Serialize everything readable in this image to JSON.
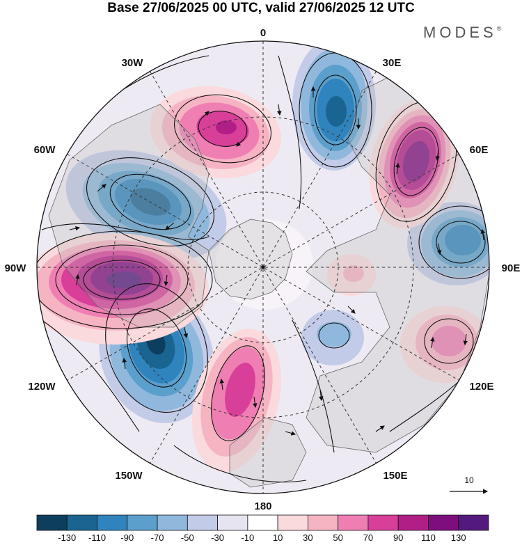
{
  "title": "Base 27/06/2025 00 UTC, valid 27/06/2025 12 UTC",
  "brand": {
    "name": "MODES",
    "mark": "®"
  },
  "meridian_labels": [
    {
      "text": "0",
      "lon": 0
    },
    {
      "text": "30E",
      "lon": 30
    },
    {
      "text": "60E",
      "lon": 60
    },
    {
      "text": "90E",
      "lon": 90
    },
    {
      "text": "120E",
      "lon": 120
    },
    {
      "text": "150E",
      "lon": 150
    },
    {
      "text": "180",
      "lon": 180
    },
    {
      "text": "150W",
      "lon": -150
    },
    {
      "text": "120W",
      "lon": -120
    },
    {
      "text": "90W",
      "lon": -90
    },
    {
      "text": "60W",
      "lon": -60
    },
    {
      "text": "30W",
      "lon": -30
    }
  ],
  "vector_reference": {
    "label": "10"
  },
  "colorbar": {
    "colors": [
      "#0d3e5d",
      "#1a6492",
      "#2f84bd",
      "#5b9fcd",
      "#8fb8dc",
      "#c2cbe7",
      "#e6e4f1",
      "#ffffff",
      "#fadadc",
      "#f6b4c3",
      "#ef7fb3",
      "#d83f99",
      "#b01e86",
      "#7e0d7e",
      "#54197d"
    ],
    "tick_labels": [
      "-130",
      "-110",
      "-90",
      "-70",
      "-50",
      "-30",
      "-10",
      "10",
      "30",
      "50",
      "70",
      "90",
      "110",
      "130"
    ]
  }
}
